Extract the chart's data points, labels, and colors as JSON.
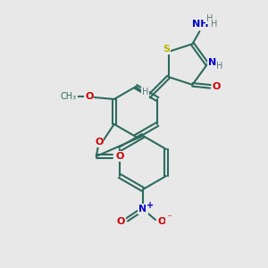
{
  "bg_color": "#e8e8e8",
  "bond_color": "#2d6b5e",
  "atom_colors": {
    "S": "#b8b800",
    "N": "#0000cc",
    "O": "#cc0000",
    "H": "#5a7a7a",
    "C": "#2d6b5e"
  },
  "figsize": [
    3.0,
    3.0
  ],
  "dpi": 100
}
